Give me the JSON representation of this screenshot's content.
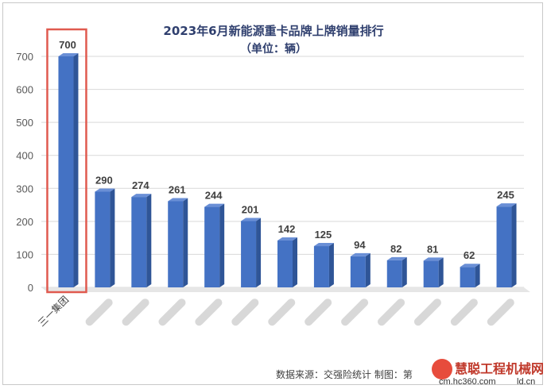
{
  "chart_data": {
    "type": "bar",
    "title": "2023年6月新能源重卡品牌上牌销量排行",
    "subtitle": "（单位：辆）",
    "categories": [
      "三一集团",
      "",
      "",
      "",
      "",
      "",
      "",
      "",
      "",
      "",
      "",
      "",
      ""
    ],
    "values": [
      700,
      290,
      274,
      261,
      244,
      201,
      142,
      125,
      94,
      82,
      81,
      62,
      245
    ],
    "ylim": [
      0,
      700
    ],
    "yticks": [
      0,
      100,
      200,
      300,
      400,
      500,
      600,
      700
    ],
    "grid": true,
    "highlight_index": 0,
    "colors": {
      "bar": "#4472c4",
      "bar_side": "#2f5597",
      "bar_top": "#6a8fd6",
      "highlight_box": "#e05a4f",
      "grid": "#d9d9d9"
    }
  },
  "footer": {
    "source": "数据来源：交强险统计  制图：第",
    "logo_name": "慧聪工程机械网",
    "logo_url": "cm.hc360.com",
    "logo_suffix": "ld.cn"
  }
}
